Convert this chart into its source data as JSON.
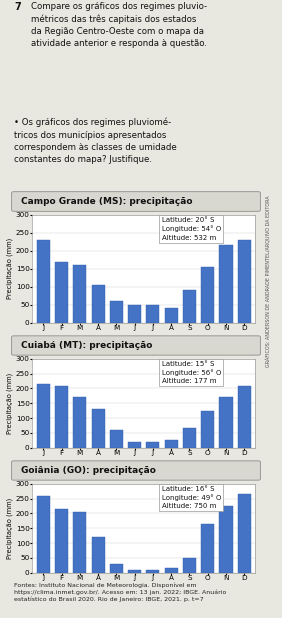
{
  "header_num": "7",
  "header_text": "Compare os gráficos dos regimes pluvio-\nmétricos das três capitais dos estados\nda Região Centro-Oeste com o mapa da\natividade anterior e responda à questão.",
  "bullet_text": "Os gráficos dos regimes pluviomé-\ntricos dos municípios apresentados\ncorrespondem às classes de umidade\nconstantes do mapa? Justifique.",
  "footer_text": "Fontes: Instituto Nacional de Meteorologia. Disponível em\nhttps://clima.inmet.gov.br/. Acesso em: 13 jan. 2022; IBGE. Anuário\nestatístico do Brasil 2020. Rio de Janeiro: IBGE, 2021. p. t=7",
  "side_text": "GRÁFICOS: ANDERSON DE ANDRADE PIMENTEL/ARQUIVO DA EDITORA",
  "months": [
    "J",
    "F",
    "M",
    "A",
    "M",
    "J",
    "J",
    "A",
    "S",
    "O",
    "N",
    "D"
  ],
  "charts": [
    {
      "title": "Campo Grande (MS): precipitação",
      "info": "Latitude: 20° S\nLongitude: 54° O\nAltitude: 532 m",
      "values": [
        230,
        170,
        160,
        105,
        60,
        50,
        50,
        40,
        90,
        155,
        215,
        230
      ],
      "ylim": [
        0,
        300
      ],
      "yticks": [
        0,
        50,
        100,
        150,
        200,
        250,
        300
      ]
    },
    {
      "title": "Cuiabá (MT): precipitação",
      "info": "Latitude: 15° S\nLongitude: 56° O\nAltitude: 177 m",
      "values": [
        215,
        210,
        170,
        130,
        60,
        20,
        20,
        25,
        65,
        125,
        170,
        210
      ],
      "ylim": [
        0,
        300
      ],
      "yticks": [
        0,
        50,
        100,
        150,
        200,
        250,
        300
      ]
    },
    {
      "title": "Goiânia (GO): precipitação",
      "info": "Latitude: 16° S\nLongitude: 49° O\nAltitude: 750 m",
      "values": [
        260,
        215,
        205,
        120,
        30,
        10,
        10,
        15,
        50,
        165,
        225,
        265
      ],
      "ylim": [
        0,
        300
      ],
      "yticks": [
        0,
        50,
        100,
        150,
        200,
        250,
        300
      ]
    }
  ],
  "bar_color": "#4472C4",
  "bar_edge_color": "#3060B0",
  "ylabel": "Precipitação (mm)",
  "bg_color": "#e8e8e0",
  "chart_bg": "#ffffff",
  "title_bg": "#d8d8d0",
  "info_box_bg": "#ffffff",
  "border_color": "#999999"
}
